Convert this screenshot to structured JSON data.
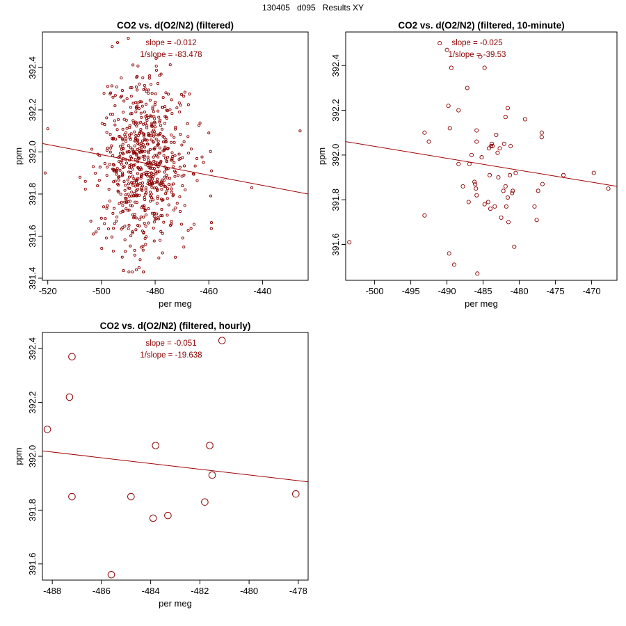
{
  "page": {
    "title": "130405   d095   Results XY"
  },
  "colors": {
    "points": "#8b0000",
    "fit_line": "#a00000",
    "annotation": "#8b0000",
    "axes": "#000000"
  },
  "chart_data": [
    {
      "id": "filtered",
      "type": "scatter",
      "title": "CO2 vs. d(O2/N2) (filtered)",
      "xlabel": "per meg",
      "ylabel": "ppm",
      "xlim": [
        -522,
        -423
      ],
      "ylim": [
        391.39,
        392.57
      ],
      "xticks": [
        -520,
        -500,
        -480,
        -460,
        -440
      ],
      "xtick_labels": [
        "-520",
        "-500",
        "-480",
        "-460",
        "-440"
      ],
      "yticks": [
        391.4,
        391.6,
        391.8,
        392.0,
        392.2,
        392.4
      ],
      "ytick_labels": [
        "391.4",
        "391.6",
        "391.8",
        "392.0",
        "392.2",
        "392.4"
      ],
      "annotations": [
        "slope = -0.012",
        "1/slope = -83.478"
      ],
      "fit_line": {
        "x": [
          -522,
          -423
        ],
        "y": [
          392.04,
          391.8
        ]
      },
      "point_style": {
        "radius": 1.6,
        "count": 700,
        "x_center": -484,
        "x_spread": 8,
        "y_center": 391.94,
        "y_spread": 0.2,
        "seed": 7
      },
      "points": [
        [
          -520,
          392.11
        ],
        [
          -521,
          391.9
        ],
        [
          -426,
          392.1
        ],
        [
          -444,
          391.83
        ],
        [
          -508,
          391.88
        ],
        [
          -506,
          391.86
        ],
        [
          -503,
          391.61
        ],
        [
          -502,
          391.62
        ],
        [
          -496,
          392.5
        ],
        [
          -494,
          392.52
        ],
        [
          -490,
          392.54
        ],
        [
          -462,
          391.95
        ],
        [
          -460,
          392.09
        ],
        [
          -459,
          391.91
        ],
        [
          -487,
          391.44
        ],
        [
          -486,
          391.45
        ]
      ]
    },
    {
      "id": "ten-minute",
      "type": "scatter",
      "title": "CO2 vs. d(O2/N2) (filtered, 10-minute)",
      "xlabel": "per meg",
      "ylabel": "ppm",
      "xlim": [
        -504,
        -466.5
      ],
      "ylim": [
        391.44,
        392.55
      ],
      "xticks": [
        -500,
        -495,
        -490,
        -485,
        -480,
        -475,
        -470
      ],
      "xtick_labels": [
        "-500",
        "-495",
        "-490",
        "-485",
        "-480",
        "-475",
        "-470"
      ],
      "yticks": [
        391.6,
        391.8,
        392.0,
        392.2,
        392.4
      ],
      "ytick_labels": [
        "391.6",
        "391.8",
        "392.0",
        "392.2",
        "392.4"
      ],
      "annotations": [
        "slope = -0.025",
        "1/slope = -39.53"
      ],
      "fit_line": {
        "x": [
          -504,
          -466.5
        ],
        "y": [
          392.06,
          391.86
        ]
      },
      "point_style": {
        "radius": 2.6
      },
      "points": [
        [
          -503.5,
          391.61
        ],
        [
          -493.1,
          391.73
        ],
        [
          -493.1,
          392.1
        ],
        [
          -492.5,
          392.06
        ],
        [
          -491,
          392.5
        ],
        [
          -490,
          392.47
        ],
        [
          -489.8,
          392.22
        ],
        [
          -489.6,
          392.12
        ],
        [
          -489.4,
          392.39
        ],
        [
          -489.7,
          391.56
        ],
        [
          -489,
          391.51
        ],
        [
          -488.4,
          392.2
        ],
        [
          -488.4,
          391.96
        ],
        [
          -487.8,
          391.86
        ],
        [
          -487.2,
          392.3
        ],
        [
          -487,
          391.79
        ],
        [
          -486.9,
          391.96
        ],
        [
          -486.6,
          392.0
        ],
        [
          -486.2,
          391.88
        ],
        [
          -486.1,
          391.87
        ],
        [
          -486,
          391.85
        ],
        [
          -485.9,
          392.11
        ],
        [
          -485.9,
          391.82
        ],
        [
          -485.9,
          392.06
        ],
        [
          -485.8,
          391.47
        ],
        [
          -485.4,
          392.44
        ],
        [
          -485.2,
          391.99
        ],
        [
          -484.8,
          392.39
        ],
        [
          -484.8,
          391.78
        ],
        [
          -484.3,
          391.79
        ],
        [
          -484.2,
          392.03
        ],
        [
          -484.1,
          391.91
        ],
        [
          -484,
          391.76
        ],
        [
          -483.9,
          392.04
        ],
        [
          -483.8,
          392.05
        ],
        [
          -483.7,
          392.04
        ],
        [
          -483.4,
          391.77
        ],
        [
          -483.2,
          392.09
        ],
        [
          -483,
          392.01
        ],
        [
          -482.9,
          391.9
        ],
        [
          -482.7,
          392.03
        ],
        [
          -482.5,
          391.72
        ],
        [
          -482.2,
          391.84
        ],
        [
          -482.1,
          392.05
        ],
        [
          -481.9,
          392.17
        ],
        [
          -481.9,
          391.86
        ],
        [
          -481.8,
          391.77
        ],
        [
          -481.6,
          392.21
        ],
        [
          -481.6,
          391.81
        ],
        [
          -481.5,
          391.7
        ],
        [
          -481.3,
          391.91
        ],
        [
          -481.2,
          392.04
        ],
        [
          -481,
          391.83
        ],
        [
          -480.9,
          391.84
        ],
        [
          -480.7,
          391.59
        ],
        [
          -480.5,
          391.92
        ],
        [
          -479.2,
          392.16
        ],
        [
          -477.9,
          391.77
        ],
        [
          -477.6,
          391.71
        ],
        [
          -477.4,
          391.84
        ],
        [
          -476.9,
          392.1
        ],
        [
          -476.9,
          392.08
        ],
        [
          -476.8,
          391.87
        ],
        [
          -473.9,
          391.91
        ],
        [
          -469.7,
          391.92
        ],
        [
          -467.7,
          391.85
        ]
      ]
    },
    {
      "id": "hourly",
      "type": "scatter",
      "title": "CO2 vs. d(O2/N2) (filtered, hourly)",
      "xlabel": "per meg",
      "ylabel": "ppm",
      "xlim": [
        -488.4,
        -477.6
      ],
      "ylim": [
        391.54,
        392.46
      ],
      "xticks": [
        -488,
        -486,
        -484,
        -482,
        -480,
        -478
      ],
      "xtick_labels": [
        "-488",
        "-486",
        "-484",
        "-482",
        "-480",
        "-478"
      ],
      "yticks": [
        391.6,
        391.8,
        392.0,
        392.2,
        392.4
      ],
      "ytick_labels": [
        "391.6",
        "391.8",
        "392.0",
        "392.2",
        "392.4"
      ],
      "annotations": [
        "slope = -0.051",
        "1/slope = -19.638"
      ],
      "fit_line": {
        "x": [
          -488.4,
          -477.6
        ],
        "y": [
          392.02,
          391.905
        ]
      },
      "point_style": {
        "radius": 4.8
      },
      "points": [
        [
          -488.2,
          392.1
        ],
        [
          -487.3,
          392.22
        ],
        [
          -487.2,
          392.37
        ],
        [
          -487.2,
          391.85
        ],
        [
          -485.6,
          391.56
        ],
        [
          -484.8,
          391.85
        ],
        [
          -483.9,
          391.77
        ],
        [
          -483.8,
          392.04
        ],
        [
          -483.3,
          391.78
        ],
        [
          -481.8,
          391.83
        ],
        [
          -481.6,
          392.04
        ],
        [
          -481.5,
          391.93
        ],
        [
          -481.1,
          392.43
        ],
        [
          -478.1,
          391.86
        ]
      ]
    }
  ]
}
